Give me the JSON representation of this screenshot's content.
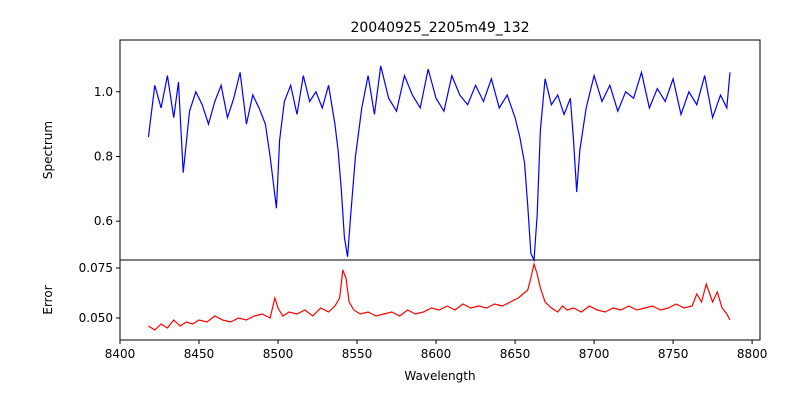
{
  "chart_data": {
    "type": "line",
    "title": "20040925_2205m49_132",
    "xlabel": "Wavelength",
    "xlim": [
      8400,
      8805
    ],
    "x_ticks": [
      "8400",
      "8450",
      "8500",
      "8550",
      "8600",
      "8650",
      "8700",
      "8750",
      "8800"
    ],
    "grid": false,
    "panels": [
      {
        "name": "spectrum",
        "ylabel": "Spectrum",
        "ylim": [
          0.48,
          1.16
        ],
        "y_ticks": [
          "0.6",
          "0.8",
          "1.0"
        ],
        "color": "#0000ff",
        "series": [
          {
            "x": [
              8418,
              8422,
              8426,
              8430,
              8434,
              8437,
              8440,
              8444,
              8448,
              8452,
              8456,
              8460,
              8464,
              8468,
              8472,
              8476,
              8480,
              8484,
              8488,
              8492,
              8495,
              8497,
              8499,
              8501,
              8504,
              8508,
              8512,
              8516,
              8520,
              8524,
              8528,
              8532,
              8536,
              8538,
              8540,
              8542,
              8544,
              8546,
              8549,
              8553,
              8557,
              8561,
              8565,
              8570,
              8575,
              8580,
              8585,
              8590,
              8595,
              8600,
              8605,
              8610,
              8615,
              8620,
              8625,
              8630,
              8635,
              8640,
              8645,
              8650,
              8653,
              8656,
              8658,
              8660,
              8662,
              8664,
              8666,
              8669,
              8673,
              8677,
              8681,
              8685,
              8687,
              8689,
              8691,
              8695,
              8700,
              8705,
              8710,
              8715,
              8720,
              8725,
              8730,
              8735,
              8740,
              8745,
              8750,
              8755,
              8760,
              8765,
              8770,
              8775,
              8780,
              8784,
              8786
            ],
            "y": [
              0.86,
              1.02,
              0.95,
              1.05,
              0.92,
              1.03,
              0.75,
              0.94,
              1.0,
              0.96,
              0.9,
              0.97,
              1.02,
              0.92,
              0.98,
              1.06,
              0.9,
              0.99,
              0.95,
              0.9,
              0.8,
              0.72,
              0.64,
              0.85,
              0.97,
              1.02,
              0.93,
              1.05,
              0.97,
              1.0,
              0.95,
              1.02,
              0.9,
              0.82,
              0.7,
              0.55,
              0.49,
              0.62,
              0.8,
              0.95,
              1.05,
              0.93,
              1.08,
              0.98,
              0.94,
              1.05,
              0.99,
              0.95,
              1.07,
              0.98,
              0.94,
              1.05,
              0.99,
              0.96,
              1.02,
              0.97,
              1.04,
              0.95,
              0.99,
              0.92,
              0.86,
              0.78,
              0.65,
              0.5,
              0.48,
              0.62,
              0.88,
              1.04,
              0.96,
              0.99,
              0.93,
              0.98,
              0.85,
              0.69,
              0.82,
              0.95,
              1.05,
              0.97,
              1.02,
              0.94,
              1.0,
              0.98,
              1.06,
              0.95,
              1.01,
              0.97,
              1.04,
              0.93,
              1.0,
              0.96,
              1.05,
              0.92,
              0.99,
              0.95,
              1.06
            ]
          }
        ]
      },
      {
        "name": "error",
        "ylabel": "Error",
        "ylim": [
          0.039,
          0.079
        ],
        "y_ticks": [
          "0.050",
          "0.075"
        ],
        "color": "#ff0000",
        "series": [
          {
            "x": [
              8418,
              8422,
              8426,
              8430,
              8434,
              8438,
              8442,
              8446,
              8450,
              8455,
              8460,
              8465,
              8470,
              8475,
              8480,
              8485,
              8490,
              8495,
              8498,
              8500,
              8503,
              8507,
              8512,
              8517,
              8522,
              8527,
              8532,
              8536,
              8539,
              8541,
              8543,
              8545,
              8548,
              8552,
              8557,
              8562,
              8567,
              8572,
              8577,
              8582,
              8587,
              8592,
              8597,
              8602,
              8607,
              8612,
              8617,
              8622,
              8627,
              8632,
              8637,
              8642,
              8647,
              8652,
              8655,
              8658,
              8660,
              8662,
              8664,
              8666,
              8669,
              8673,
              8677,
              8680,
              8683,
              8687,
              8692,
              8697,
              8702,
              8707,
              8712,
              8717,
              8722,
              8727,
              8732,
              8737,
              8742,
              8747,
              8752,
              8757,
              8762,
              8765,
              8768,
              8771,
              8775,
              8778,
              8781,
              8784,
              8786
            ],
            "y": [
              0.046,
              0.044,
              0.047,
              0.045,
              0.049,
              0.046,
              0.048,
              0.047,
              0.049,
              0.048,
              0.051,
              0.049,
              0.048,
              0.05,
              0.049,
              0.051,
              0.052,
              0.05,
              0.06,
              0.055,
              0.051,
              0.053,
              0.052,
              0.054,
              0.051,
              0.055,
              0.053,
              0.056,
              0.06,
              0.074,
              0.07,
              0.058,
              0.054,
              0.052,
              0.053,
              0.051,
              0.052,
              0.053,
              0.051,
              0.054,
              0.052,
              0.053,
              0.055,
              0.054,
              0.056,
              0.054,
              0.057,
              0.055,
              0.056,
              0.055,
              0.057,
              0.056,
              0.058,
              0.06,
              0.062,
              0.064,
              0.07,
              0.077,
              0.072,
              0.065,
              0.058,
              0.055,
              0.053,
              0.056,
              0.054,
              0.055,
              0.053,
              0.056,
              0.054,
              0.053,
              0.055,
              0.054,
              0.056,
              0.054,
              0.055,
              0.056,
              0.054,
              0.055,
              0.057,
              0.055,
              0.056,
              0.062,
              0.058,
              0.067,
              0.058,
              0.063,
              0.055,
              0.052,
              0.049
            ]
          }
        ]
      }
    ]
  }
}
